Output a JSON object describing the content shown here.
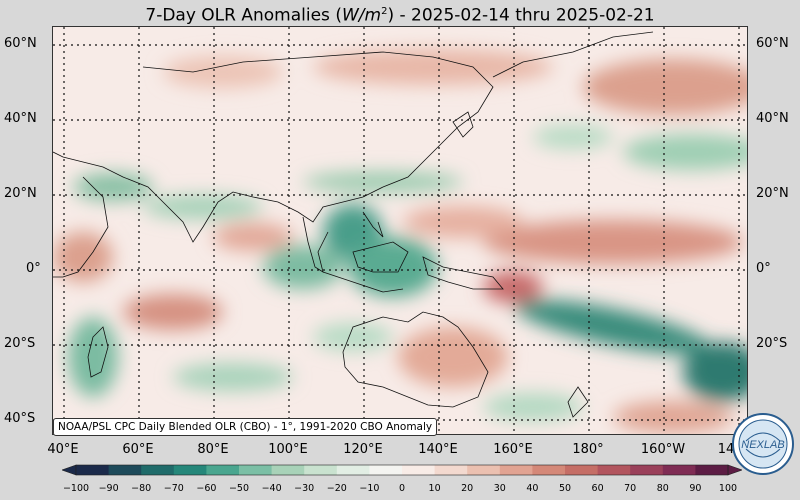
{
  "title": {
    "prefix": "7-Day OLR Anomalies (",
    "unit_var": "W/m",
    "unit_exp": "2",
    "suffix": ") - 2025-02-14 thru 2025-02-21"
  },
  "map": {
    "credit": "NOAA/PSL CPC Daily Blended OLR (CBO) - 1°, 1991-2020 CBO Anomaly",
    "lat_labels": [
      "60°N",
      "40°N",
      "20°N",
      "0°",
      "20°S",
      "40°S"
    ],
    "lon_labels": [
      "40°E",
      "60°E",
      "80°E",
      "100°E",
      "120°E",
      "140°E",
      "160°E",
      "180°",
      "160°W",
      "14"
    ]
  },
  "colorbar": {
    "ticks": [
      "−100",
      "−90",
      "−80",
      "−70",
      "−60",
      "−50",
      "−40",
      "−30",
      "−20",
      "−10",
      "0",
      "10",
      "20",
      "30",
      "40",
      "50",
      "60",
      "70",
      "80",
      "90",
      "100"
    ],
    "colors": [
      "#1b2a4a",
      "#1d4a5a",
      "#1f6b6a",
      "#25877a",
      "#4aa68f",
      "#7bbfa5",
      "#a8d2b8",
      "#c9e2cf",
      "#e2eee4",
      "#f4f4f1",
      "#f8ece7",
      "#f3d9cf",
      "#ebc0b0",
      "#e1a392",
      "#d48878",
      "#c56e66",
      "#b2555e",
      "#9a405a",
      "#7f2c54",
      "#5c1c44"
    ]
  },
  "logo": {
    "text": "NEXLAB"
  }
}
